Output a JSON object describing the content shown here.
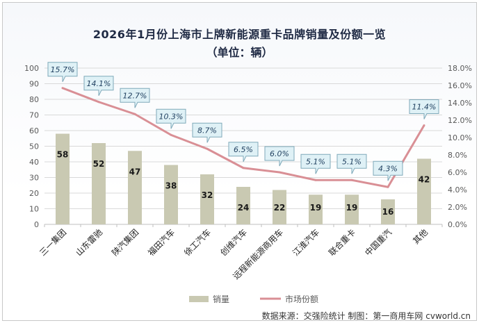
{
  "title": "2026年1月份上海市上牌新能源重卡品牌销量及份额一览",
  "subtitle": "（单位：辆）",
  "source": "数据来源：交强险统计 制图：第一商用车网 cvworld.cn",
  "colors": {
    "bar": "#c9c9b2",
    "line": "#d98f95",
    "callout_fill": "#dff1f6",
    "callout_stroke": "#7fa9b9",
    "grid": "#d9d9d9"
  },
  "chart_data": {
    "type": "bar",
    "categories": [
      "三一集团",
      "山东雷驰",
      "陕汽集团",
      "福田汽车",
      "徐工汽车",
      "创维汽车",
      "远程新能源商用车",
      "江淮汽车",
      "联合重卡",
      "中国重汽",
      "其他"
    ],
    "series": [
      {
        "name": "销量",
        "type": "bar",
        "axis": "left",
        "values": [
          58,
          52,
          47,
          38,
          32,
          24,
          22,
          19,
          19,
          16,
          42
        ],
        "labels": [
          "58",
          "52",
          "47",
          "38",
          "32",
          "24",
          "22",
          "19",
          "19",
          "16",
          "42"
        ]
      },
      {
        "name": "市场份额",
        "type": "line",
        "axis": "right",
        "values": [
          15.7,
          14.1,
          12.7,
          10.3,
          8.7,
          6.5,
          6.0,
          5.1,
          5.1,
          4.3,
          11.4
        ],
        "labels": [
          "15.7%",
          "14.1%",
          "12.7%",
          "10.3%",
          "8.7%",
          "6.5%",
          "6.0%",
          "5.1%",
          "5.1%",
          "4.3%",
          "11.4%"
        ]
      }
    ],
    "y_left": {
      "min": 0,
      "max": 100,
      "step": 10,
      "ticks": [
        "0",
        "10",
        "20",
        "30",
        "40",
        "50",
        "60",
        "70",
        "80",
        "90",
        "100"
      ]
    },
    "y_right": {
      "min": 0,
      "max": 18,
      "step": 2,
      "ticks": [
        "0.0%",
        "2.0%",
        "4.0%",
        "6.0%",
        "8.0%",
        "10.0%",
        "12.0%",
        "14.0%",
        "16.0%",
        "18.0%"
      ]
    },
    "legend": {
      "position": "bottom",
      "items": [
        "销量",
        "市场份额"
      ]
    },
    "grid": true
  }
}
